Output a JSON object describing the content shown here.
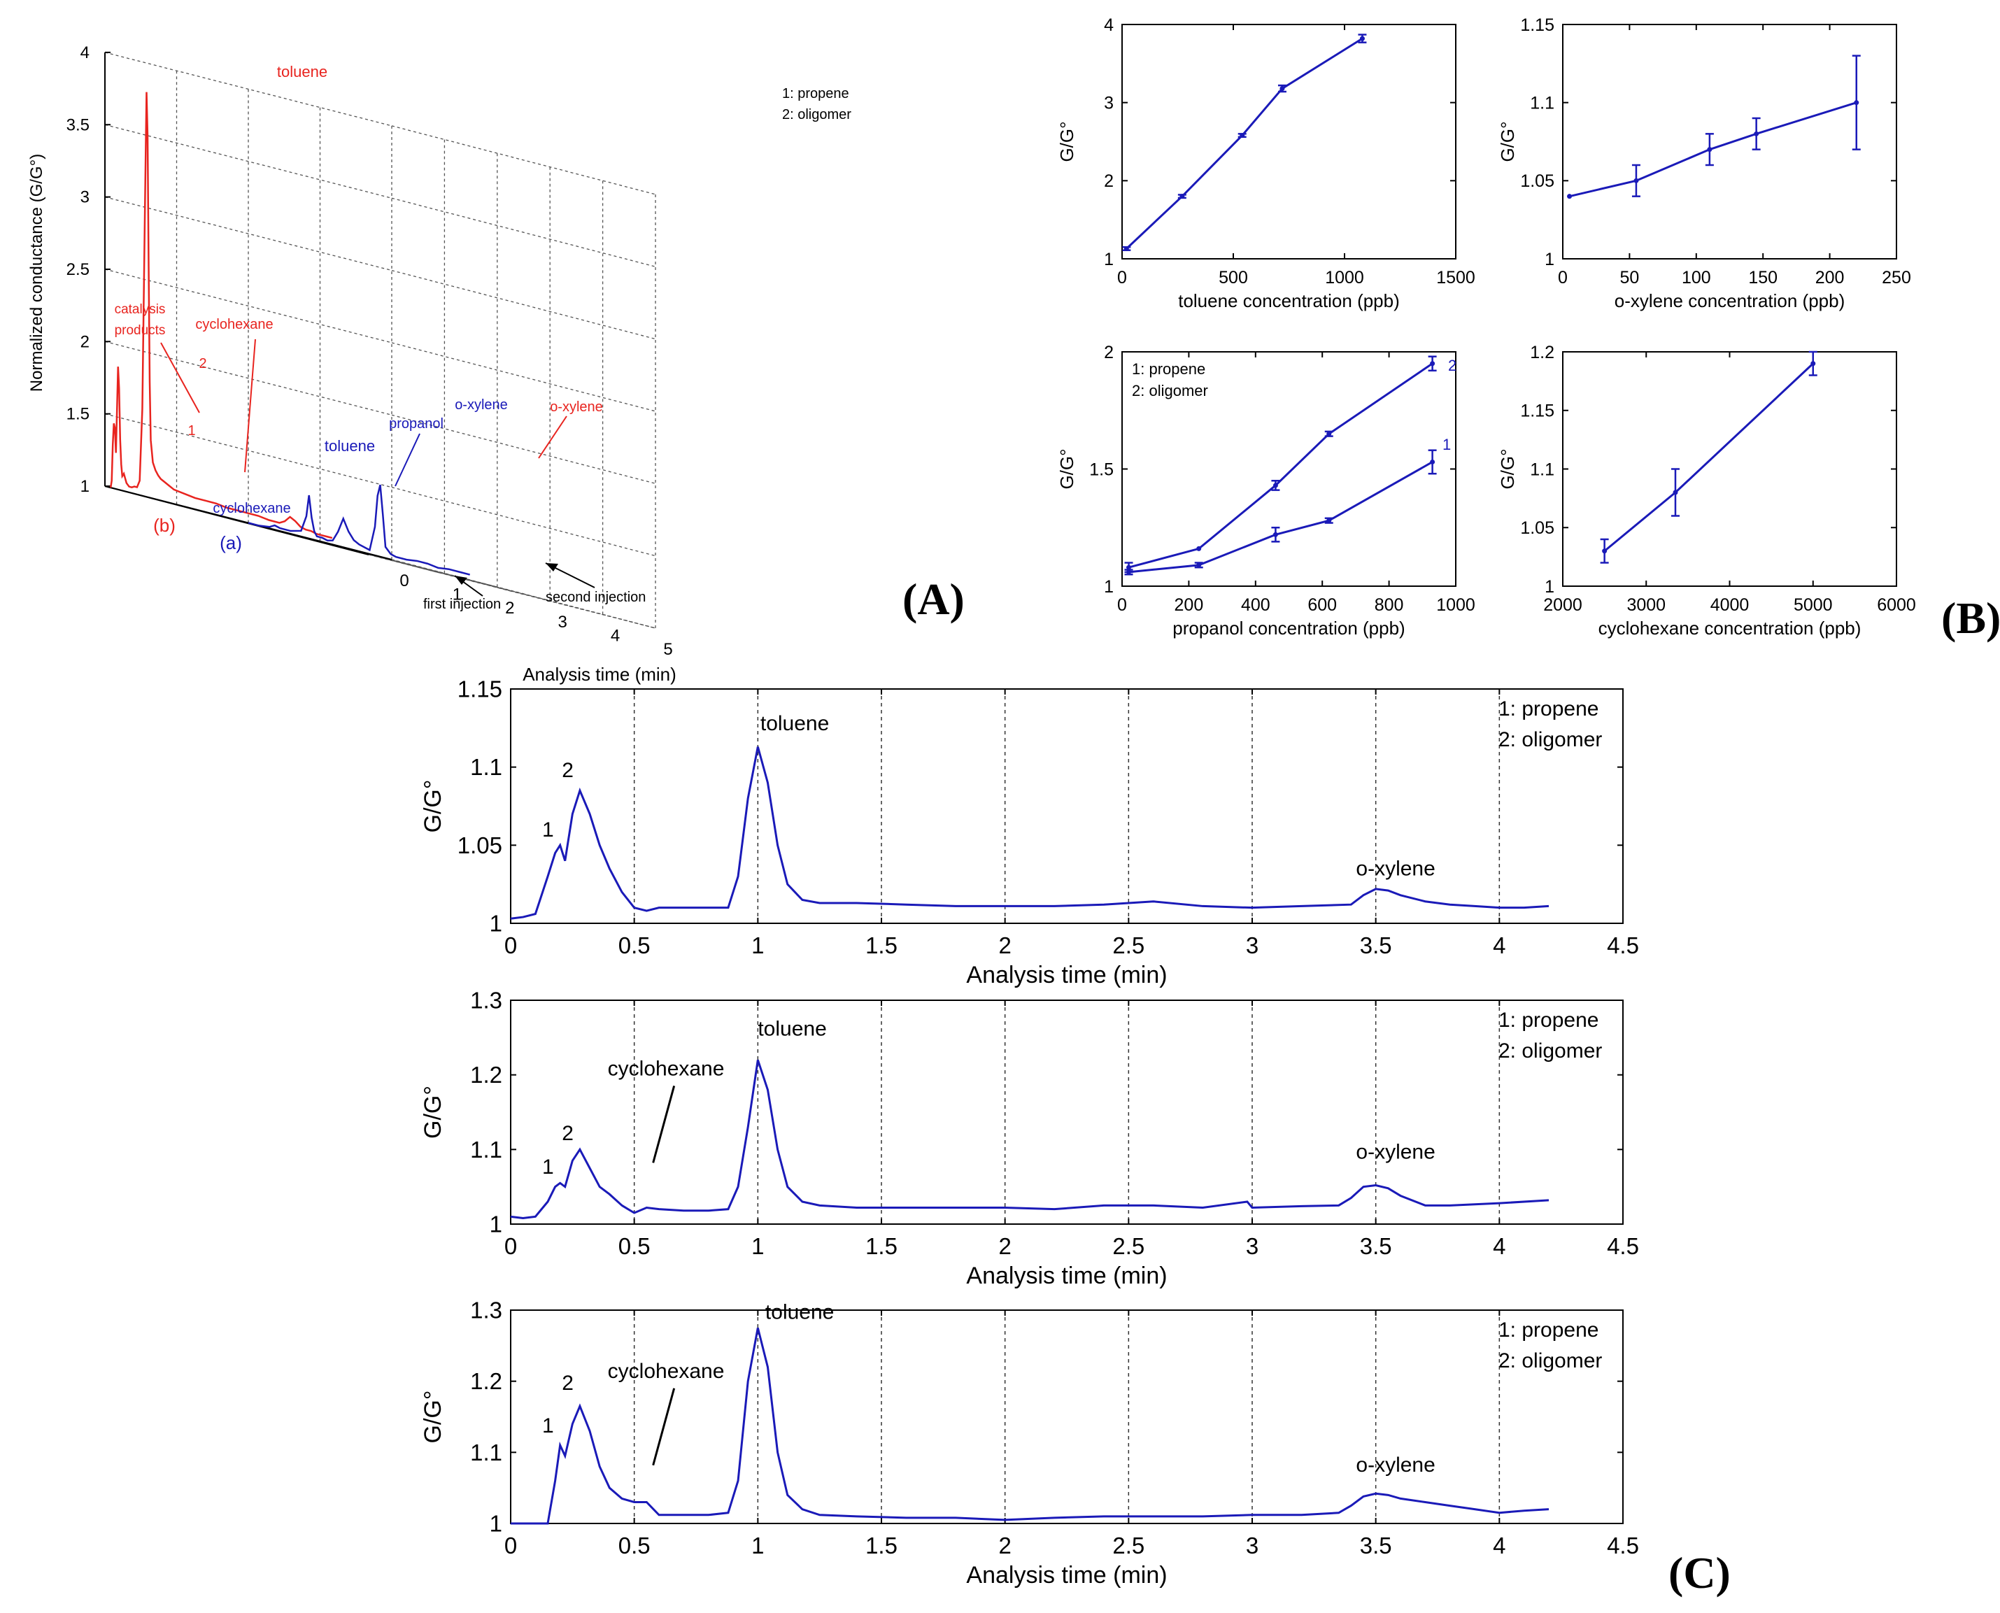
{
  "figure": {
    "panel_labels": {
      "A": "(A)",
      "B": "(B)",
      "C": "(C)"
    }
  },
  "colors": {
    "red": "#e8241f",
    "blue": "#1a1ab8",
    "axis": "#000000",
    "grid": "#666666"
  },
  "chart_data": [
    {
      "id": "A",
      "type": "line",
      "title": "",
      "projection": "3d-waterfall",
      "xlabel": "Analysis time (min)",
      "ylabel": "Normalized conductance (G/G°)",
      "xlim": [
        0,
        5
      ],
      "ylim": [
        1,
        4
      ],
      "xticks": [
        0,
        1,
        2,
        3,
        4,
        5
      ],
      "yticks": [
        1,
        1.5,
        2,
        2.5,
        3,
        3.5,
        4
      ],
      "legend_text": [
        "1: propene",
        "2: oligomer"
      ],
      "depth_labels": [
        "(b)",
        "(a)"
      ],
      "arrows": [
        {
          "text": "first injection",
          "x": 0
        },
        {
          "text": "second injection",
          "x": 1
        }
      ],
      "series": [
        {
          "name": "(b)",
          "color": "#e8241f",
          "depth": 1,
          "x": [
            0,
            0.02,
            0.04,
            0.06,
            0.08,
            0.1,
            0.12,
            0.14,
            0.16,
            0.18,
            0.2,
            0.22,
            0.25,
            0.3,
            0.35,
            0.4,
            0.45,
            0.5,
            0.55,
            0.6,
            0.65,
            0.68,
            0.7,
            0.72,
            0.74,
            0.76,
            0.8,
            0.85,
            0.9,
            0.95,
            1.0,
            1.1,
            1.2,
            1.4,
            1.6,
            1.8,
            2.0,
            2.2,
            2.4,
            2.6,
            2.8,
            3.0,
            3.2,
            3.3,
            3.4,
            3.5,
            3.6,
            3.7,
            3.8,
            3.9,
            4.0,
            4.1,
            4.2
          ],
          "y": [
            1.0,
            1.05,
            1.3,
            1.45,
            1.42,
            1.25,
            1.55,
            1.85,
            1.7,
            1.35,
            1.18,
            1.1,
            1.12,
            1.06,
            1.04,
            1.04,
            1.05,
            1.05,
            1.1,
            1.6,
            3.0,
            3.8,
            3.5,
            2.6,
            1.8,
            1.4,
            1.25,
            1.2,
            1.17,
            1.15,
            1.14,
            1.12,
            1.1,
            1.09,
            1.08,
            1.08,
            1.08,
            1.07,
            1.07,
            1.07,
            1.07,
            1.06,
            1.06,
            1.08,
            1.12,
            1.1,
            1.07,
            1.06,
            1.06,
            1.05,
            1.05,
            1.05,
            1.05
          ],
          "annotations": [
            {
              "text": "toluene",
              "x": 0.68
            },
            {
              "text": "catalysis products",
              "x": 0.05
            },
            {
              "text": "cyclohexane",
              "x": 0.4
            },
            {
              "text": "1",
              "x": 0.06
            },
            {
              "text": "2",
              "x": 0.14
            },
            {
              "text": "o-xylene",
              "x": 3.4
            }
          ]
        },
        {
          "name": "(a)",
          "color": "#1a1ab8",
          "depth": 0,
          "x": [
            0,
            0.2,
            0.4,
            0.5,
            0.6,
            0.8,
            1.0,
            1.1,
            1.15,
            1.2,
            1.25,
            1.3,
            1.4,
            1.5,
            1.6,
            1.7,
            1.8,
            1.9,
            2.0,
            2.1,
            2.2,
            2.3,
            2.4,
            2.45,
            2.5,
            2.55,
            2.6,
            2.7,
            2.8,
            3.0,
            3.2,
            3.4,
            3.6,
            3.8,
            4.0,
            4.2
          ],
          "y": [
            1.0,
            1.0,
            1.01,
            1.03,
            1.02,
            1.02,
            1.04,
            1.15,
            1.3,
            1.15,
            1.06,
            1.03,
            1.03,
            1.02,
            1.03,
            1.1,
            1.2,
            1.12,
            1.07,
            1.05,
            1.04,
            1.03,
            1.2,
            1.42,
            1.5,
            1.3,
            1.08,
            1.04,
            1.03,
            1.03,
            1.04,
            1.04,
            1.03,
            1.04,
            1.04,
            1.04
          ],
          "annotations": [
            {
              "text": "cyclohexane",
              "x": 0.5
            },
            {
              "text": "toluene",
              "x": 1.15
            },
            {
              "text": "propanol",
              "x": 1.8
            },
            {
              "text": "o-xylene",
              "x": 2.5
            }
          ]
        }
      ]
    },
    {
      "id": "B1",
      "type": "line",
      "xlabel": "toluene concentration (ppb)",
      "ylabel": "G/G°",
      "xlim": [
        0,
        1500
      ],
      "ylim": [
        1,
        4
      ],
      "xticks": [
        0,
        500,
        1000,
        1500
      ],
      "yticks": [
        1,
        2,
        3,
        4
      ],
      "series": [
        {
          "name": "toluene",
          "x": [
            20,
            270,
            540,
            720,
            1080
          ],
          "y": [
            1.13,
            1.8,
            2.58,
            3.18,
            3.82
          ],
          "err": [
            0.02,
            0.02,
            0.02,
            0.04,
            0.05
          ]
        }
      ]
    },
    {
      "id": "B2",
      "type": "line",
      "xlabel": "o-xylene concentration (ppb)",
      "ylabel": "G/G°",
      "xlim": [
        0,
        250
      ],
      "ylim": [
        1,
        1.15
      ],
      "xticks": [
        0,
        50,
        100,
        150,
        200,
        250
      ],
      "yticks": [
        1,
        1.05,
        1.1,
        1.15
      ],
      "series": [
        {
          "name": "o-xylene",
          "x": [
            5,
            55,
            110,
            145,
            220
          ],
          "y": [
            1.04,
            1.05,
            1.07,
            1.08,
            1.1
          ],
          "err": [
            0.0,
            0.01,
            0.01,
            0.01,
            0.03
          ]
        }
      ]
    },
    {
      "id": "B3",
      "type": "line",
      "xlabel": "propanol concentration (ppb)",
      "ylabel": "G/G°",
      "xlim": [
        0,
        1000
      ],
      "ylim": [
        1,
        2
      ],
      "xticks": [
        0,
        200,
        400,
        600,
        800,
        1000
      ],
      "yticks": [
        1,
        1.5,
        2
      ],
      "legend_text": [
        "1: propene",
        "2: oligomer"
      ],
      "series": [
        {
          "name": "2",
          "x": [
            20,
            230,
            460,
            620,
            930
          ],
          "y": [
            1.08,
            1.16,
            1.43,
            1.65,
            1.95
          ],
          "err": [
            0.02,
            0.0,
            0.02,
            0.01,
            0.03
          ]
        },
        {
          "name": "1",
          "x": [
            20,
            230,
            460,
            620,
            930
          ],
          "y": [
            1.06,
            1.09,
            1.22,
            1.28,
            1.53
          ],
          "err": [
            0.01,
            0.01,
            0.03,
            0.01,
            0.05
          ]
        }
      ]
    },
    {
      "id": "B4",
      "type": "line",
      "xlabel": "cyclohexane concentration (ppb)",
      "ylabel": "G/G°",
      "xlim": [
        2000,
        6000
      ],
      "ylim": [
        1,
        1.2
      ],
      "xticks": [
        2000,
        3000,
        4000,
        5000,
        6000
      ],
      "yticks": [
        1,
        1.05,
        1.1,
        1.15,
        1.2
      ],
      "series": [
        {
          "name": "cyclohexane",
          "x": [
            2500,
            3350,
            5000
          ],
          "y": [
            1.03,
            1.08,
            1.19
          ],
          "err": [
            0.01,
            0.02,
            0.01
          ]
        }
      ]
    },
    {
      "id": "C1",
      "type": "line",
      "xlabel": "Analysis time (min)",
      "ylabel": "G/G°",
      "xlim": [
        0,
        4.5
      ],
      "ylim": [
        1,
        1.15
      ],
      "xticks": [
        0,
        0.5,
        1,
        1.5,
        2,
        2.5,
        3,
        3.5,
        4,
        4.5
      ],
      "yticks": [
        1,
        1.05,
        1.1,
        1.15
      ],
      "vgrid": [
        0.5,
        1,
        1.5,
        2,
        2.5,
        3,
        3.5,
        4
      ],
      "legend_text": [
        "1: propene",
        "2: oligomer"
      ],
      "annotations": [
        {
          "text": "1",
          "x": 0.15,
          "y": 1.052
        },
        {
          "text": "2",
          "x": 0.23,
          "y": 1.09
        },
        {
          "text": "toluene",
          "x": 1.01,
          "y": 1.12
        },
        {
          "text": "o-xylene",
          "x": 3.42,
          "y": 1.027
        }
      ],
      "series": [
        {
          "name": "signal",
          "x": [
            0,
            0.05,
            0.1,
            0.15,
            0.18,
            0.2,
            0.22,
            0.25,
            0.28,
            0.32,
            0.36,
            0.4,
            0.45,
            0.5,
            0.55,
            0.6,
            0.7,
            0.8,
            0.88,
            0.92,
            0.96,
            1.0,
            1.04,
            1.08,
            1.12,
            1.18,
            1.25,
            1.4,
            1.6,
            1.8,
            2.0,
            2.2,
            2.4,
            2.6,
            2.8,
            3.0,
            3.2,
            3.4,
            3.45,
            3.5,
            3.55,
            3.6,
            3.7,
            3.8,
            3.9,
            4.0,
            4.1,
            4.2
          ],
          "y": [
            1.003,
            1.004,
            1.006,
            1.03,
            1.045,
            1.05,
            1.04,
            1.07,
            1.085,
            1.07,
            1.05,
            1.035,
            1.02,
            1.01,
            1.008,
            1.01,
            1.01,
            1.01,
            1.01,
            1.03,
            1.08,
            1.113,
            1.09,
            1.05,
            1.025,
            1.015,
            1.013,
            1.013,
            1.012,
            1.011,
            1.011,
            1.011,
            1.012,
            1.014,
            1.011,
            1.01,
            1.011,
            1.012,
            1.018,
            1.022,
            1.021,
            1.018,
            1.014,
            1.012,
            1.011,
            1.01,
            1.01,
            1.011
          ]
        }
      ]
    },
    {
      "id": "C2",
      "type": "line",
      "xlabel": "Analysis time (min)",
      "ylabel": "G/G°",
      "xlim": [
        0,
        4.5
      ],
      "ylim": [
        1,
        1.3
      ],
      "xticks": [
        0,
        0.5,
        1,
        1.5,
        2,
        2.5,
        3,
        3.5,
        4,
        4.5
      ],
      "yticks": [
        1,
        1.1,
        1.2,
        1.3
      ],
      "vgrid": [
        0.5,
        1,
        1.5,
        2,
        2.5,
        3,
        3.5,
        4
      ],
      "legend_text": [
        "1: propene",
        "2: oligomer"
      ],
      "annotations": [
        {
          "text": "1",
          "x": 0.15,
          "y": 1.06
        },
        {
          "text": "2",
          "x": 0.23,
          "y": 1.105
        },
        {
          "text": "toluene",
          "x": 1.0,
          "y": 1.245
        },
        {
          "text": "cyclohexane",
          "x": 0.35,
          "y": 1.19
        },
        {
          "text": "o-xylene",
          "x": 3.42,
          "y": 1.08
        }
      ],
      "series": [
        {
          "name": "signal",
          "x": [
            0,
            0.05,
            0.1,
            0.15,
            0.18,
            0.2,
            0.22,
            0.25,
            0.28,
            0.32,
            0.36,
            0.4,
            0.45,
            0.5,
            0.55,
            0.6,
            0.7,
            0.8,
            0.88,
            0.92,
            0.96,
            1.0,
            1.04,
            1.08,
            1.12,
            1.18,
            1.25,
            1.4,
            1.6,
            1.8,
            2.0,
            2.2,
            2.4,
            2.6,
            2.8,
            2.98,
            3.0,
            3.2,
            3.35,
            3.4,
            3.45,
            3.5,
            3.55,
            3.6,
            3.7,
            3.8,
            4.0,
            4.2
          ],
          "y": [
            1.01,
            1.008,
            1.01,
            1.03,
            1.05,
            1.055,
            1.05,
            1.085,
            1.1,
            1.075,
            1.05,
            1.04,
            1.025,
            1.015,
            1.022,
            1.02,
            1.018,
            1.018,
            1.02,
            1.05,
            1.13,
            1.22,
            1.18,
            1.1,
            1.05,
            1.03,
            1.025,
            1.022,
            1.022,
            1.022,
            1.022,
            1.02,
            1.025,
            1.025,
            1.022,
            1.03,
            1.022,
            1.024,
            1.025,
            1.035,
            1.05,
            1.052,
            1.048,
            1.038,
            1.025,
            1.025,
            1.028,
            1.032
          ]
        }
      ]
    },
    {
      "id": "C3",
      "type": "line",
      "xlabel": "Analysis time (min)",
      "ylabel": "G/G°",
      "xlim": [
        0,
        4.5
      ],
      "ylim": [
        1,
        1.3
      ],
      "xticks": [
        0,
        0.5,
        1,
        1.5,
        2,
        2.5,
        3,
        3.5,
        4,
        4.5
      ],
      "yticks": [
        1,
        1.1,
        1.2,
        1.3
      ],
      "vgrid": [
        0.5,
        1,
        1.5,
        2,
        2.5,
        3,
        3.5,
        4
      ],
      "legend_text": [
        "1: propene",
        "2: oligomer"
      ],
      "annotations": [
        {
          "text": "1",
          "x": 0.15,
          "y": 1.12
        },
        {
          "text": "2",
          "x": 0.23,
          "y": 1.18
        },
        {
          "text": "toluene",
          "x": 1.03,
          "y": 1.28
        },
        {
          "text": "cyclohexane",
          "x": 0.35,
          "y": 1.195
        },
        {
          "text": "o-xylene",
          "x": 3.42,
          "y": 1.065
        }
      ],
      "series": [
        {
          "name": "signal",
          "x": [
            0,
            0.05,
            0.1,
            0.15,
            0.18,
            0.2,
            0.22,
            0.25,
            0.28,
            0.32,
            0.36,
            0.4,
            0.45,
            0.5,
            0.55,
            0.6,
            0.7,
            0.8,
            0.88,
            0.92,
            0.96,
            1.0,
            1.04,
            1.08,
            1.12,
            1.18,
            1.25,
            1.4,
            1.6,
            1.8,
            2.0,
            2.2,
            2.4,
            2.6,
            2.8,
            3.0,
            3.2,
            3.35,
            3.4,
            3.45,
            3.5,
            3.55,
            3.6,
            3.7,
            3.8,
            3.9,
            4.0,
            4.1,
            4.2
          ],
          "y": [
            1.0,
            1.0,
            1.0,
            1.0,
            1.06,
            1.11,
            1.095,
            1.14,
            1.165,
            1.13,
            1.08,
            1.05,
            1.035,
            1.03,
            1.03,
            1.012,
            1.012,
            1.012,
            1.015,
            1.06,
            1.2,
            1.275,
            1.22,
            1.1,
            1.04,
            1.02,
            1.012,
            1.01,
            1.008,
            1.008,
            1.005,
            1.008,
            1.01,
            1.01,
            1.01,
            1.012,
            1.012,
            1.015,
            1.025,
            1.038,
            1.042,
            1.04,
            1.035,
            1.03,
            1.025,
            1.02,
            1.015,
            1.018,
            1.02
          ]
        }
      ]
    }
  ]
}
